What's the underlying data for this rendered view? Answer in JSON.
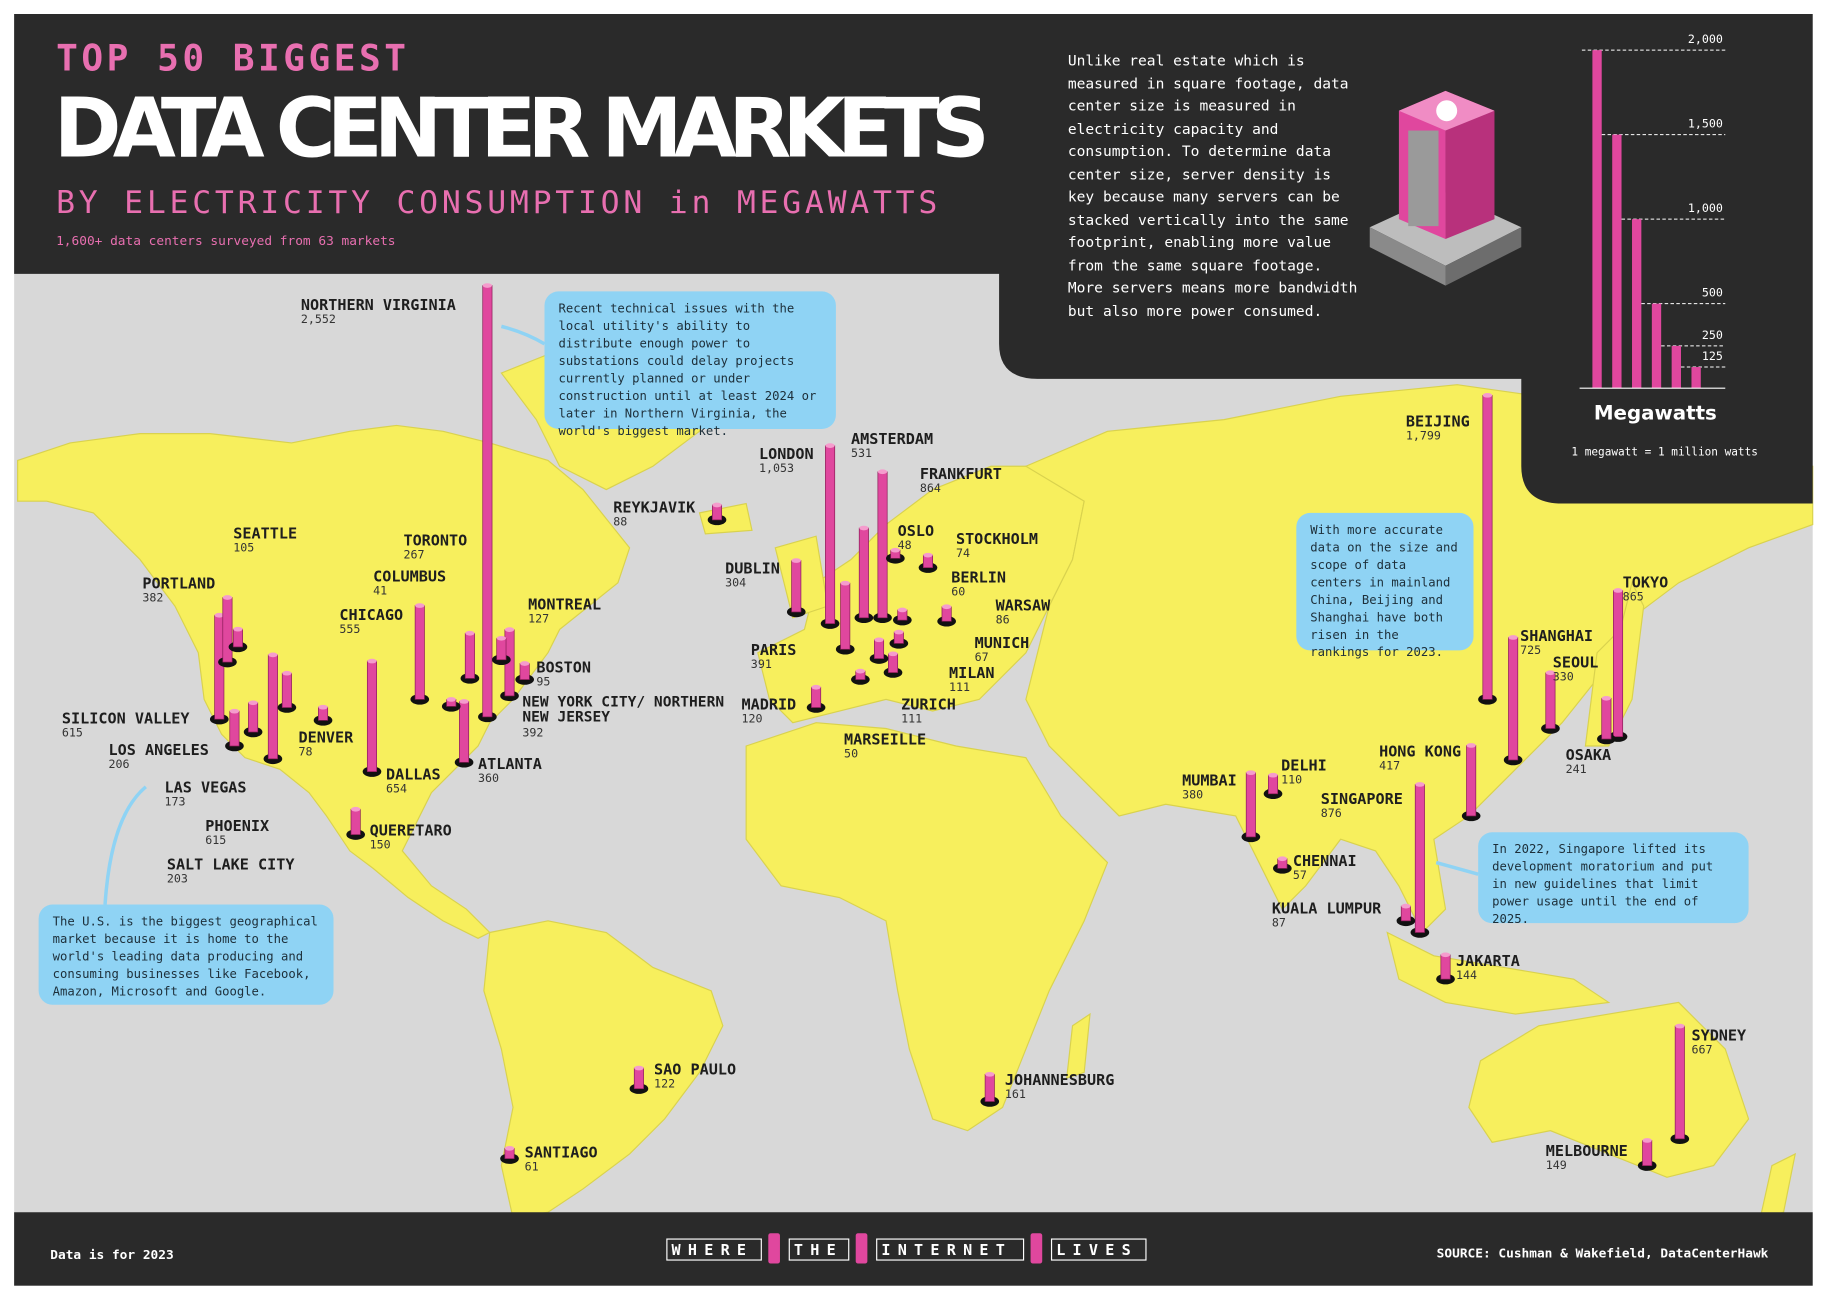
{
  "chart_data": {
    "type": "bar",
    "title_top": "TOP 50 BIGGEST",
    "title": "DATA CENTER MARKETS",
    "subtitle": "BY ELECTRICITY CONSUMPTION in MEGAWATTS",
    "note": "1,600+ data centers surveyed from 63 markets",
    "description": "Unlike real estate which is measured in square footage, data center size is measured in electricity capacity and consumption. To determine data center size, server density is key because many servers can be stacked vertically into the same footprint, enabling more value from the same square footage. More servers means more bandwidth but also more power consumed.",
    "annotations": [
      "Recent technical issues with the local utility's ability to distribute enough power to substations could delay projects currently planned or under construction until at least 2024 or later in Northern Virginia, the world's biggest market.",
      "With more accurate data on the size and scope of data centers in mainland China, Beijing and Shanghai have both risen in the rankings for 2023.",
      "In 2022, Singapore lifted its development moratorium and put in new guidelines that limit power usage until the end of 2025.",
      "The U.S. is the biggest geographical market because it is home to the world's leading data producing and consuming businesses like Facebook, Amazon, Microsoft and Google."
    ],
    "color": "#e0479e",
    "categories": [
      "NORTHERN VIRGINIA",
      "BEIJING",
      "LONDON",
      "SINGAPORE",
      "TOKYO",
      "FRANKFURT",
      "SHANGHAI",
      "SYDNEY",
      "DALLAS",
      "SILICON VALLEY",
      "PHOENIX",
      "CHICAGO",
      "AMSTERDAM",
      "HONG KONG",
      "NEW YORK CITY/ NORTHERN NEW JERSEY",
      "PARIS",
      "PORTLAND",
      "MUMBAI",
      "ATLANTA",
      "SEOUL",
      "DUBLIN",
      "TORONTO",
      "OSAKA",
      "LOS ANGELES",
      "SALT LAKE CITY",
      "LAS VEGAS",
      "JOHANNESBURG",
      "QUERETARO",
      "MELBOURNE",
      "JAKARTA",
      "MONTREAL",
      "SAO PAULO",
      "MADRID",
      "MILAN",
      "ZURICH",
      "DELHI",
      "SEATTLE",
      "BOSTON",
      "REYKJAVIK",
      "KUALA LUMPUR",
      "WARSAW",
      "DENVER",
      "STOCKHOLM",
      "MUNICH",
      "SANTIAGO",
      "BERLIN",
      "CHENNAI",
      "MARSEILLE",
      "OSLO",
      "COLUMBUS"
    ],
    "values": [
      2552,
      1799,
      1053,
      876,
      865,
      864,
      725,
      667,
      654,
      615,
      615,
      555,
      531,
      417,
      392,
      391,
      382,
      380,
      360,
      330,
      304,
      267,
      241,
      206,
      203,
      173,
      161,
      150,
      149,
      144,
      127,
      122,
      120,
      111,
      111,
      110,
      105,
      95,
      88,
      87,
      86,
      78,
      74,
      67,
      61,
      60,
      57,
      50,
      48,
      41
    ],
    "value_labels": [
      "2,552",
      "1,799",
      "1,053",
      "876",
      "865",
      "864",
      "725",
      "667",
      "654",
      "615",
      "615",
      "555",
      "531",
      "417",
      "392",
      "391",
      "382",
      "380",
      "360",
      "330",
      "304",
      "267",
      "241",
      "206",
      "203",
      "173",
      "161",
      "150",
      "149",
      "144",
      "127",
      "122",
      "120",
      "111",
      "111",
      "110",
      "105",
      "95",
      "88",
      "87",
      "86",
      "78",
      "74",
      "67",
      "61",
      "60",
      "57",
      "50",
      "48",
      "41"
    ],
    "ylim": [
      0,
      2000
    ],
    "yticks": [
      {
        "value": 2000,
        "label": "2,000"
      },
      {
        "value": 1500,
        "label": "1,500"
      },
      {
        "value": 1000,
        "label": "1,000"
      },
      500,
      250,
      125
    ],
    "y_label": "Megawatts",
    "scale_note": "1 megawatt = 1 million watts",
    "footnote": "Data is for 2023",
    "footer_words": [
      "WHERE",
      "THE",
      "INTERNET",
      "LIVES"
    ],
    "source": "SOURCE: Cushman & Wakefield, DataCenterHawk"
  }
}
